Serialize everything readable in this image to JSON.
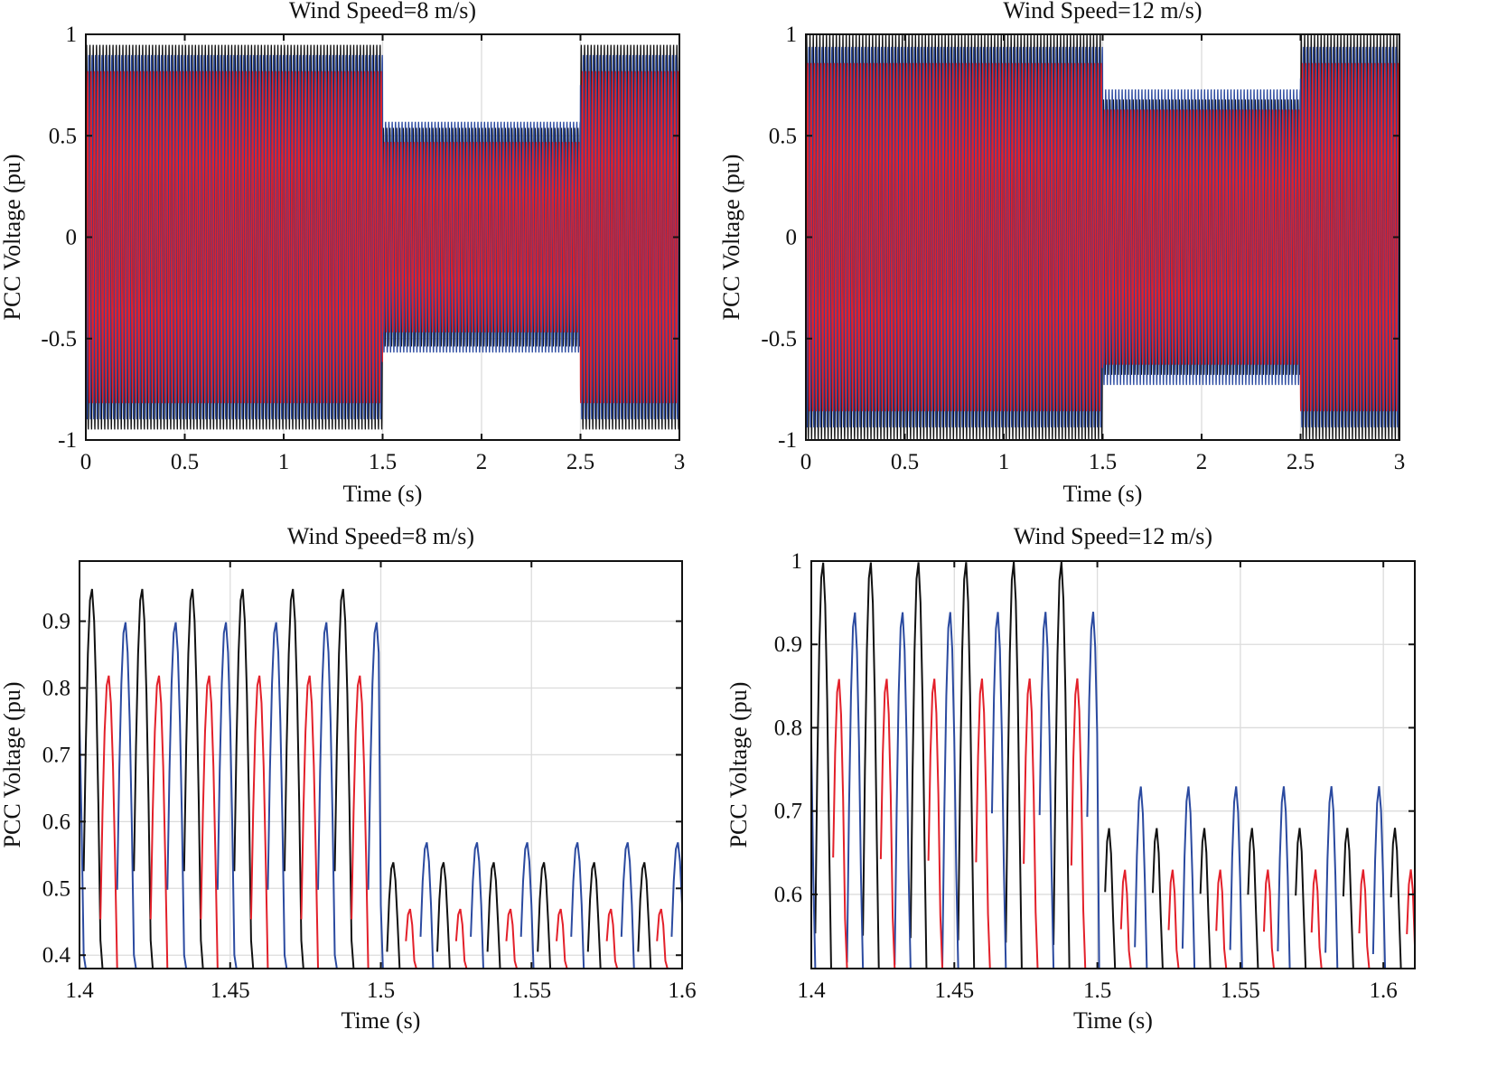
{
  "colors": {
    "phase_a": "#111111",
    "phase_b": "#2b4aa0",
    "phase_c": "#e3202a",
    "grid": "#dcdcdc"
  },
  "chart_data": [
    {
      "type": "line",
      "title": "Wind Speed=8 m/s)",
      "xlabel": "Time (s)",
      "ylabel": "PCC Voltage (pu)",
      "xlim": [
        0,
        3
      ],
      "ylim": [
        -1,
        1
      ],
      "xticks": [
        "0",
        "0.5",
        "1",
        "1.5",
        "2",
        "2.5",
        "3"
      ],
      "yticks": [
        "1",
        "0.5",
        "0",
        "-0.5",
        "-1"
      ],
      "grid": true,
      "frequency_hz": 60,
      "series": [
        {
          "color": "#111111",
          "segments": [
            {
              "t": [
                0,
                1.5
              ],
              "amplitude": 0.95
            },
            {
              "t": [
                1.5,
                2.5
              ],
              "amplitude": 0.54
            },
            {
              "t": [
                2.5,
                3
              ],
              "amplitude": 0.95
            }
          ]
        },
        {
          "color": "#2b4aa0",
          "segments": [
            {
              "t": [
                0,
                1.5
              ],
              "amplitude": 0.9
            },
            {
              "t": [
                1.5,
                2.5
              ],
              "amplitude": 0.57
            },
            {
              "t": [
                2.5,
                3
              ],
              "amplitude": 0.9
            }
          ]
        },
        {
          "color": "#e3202a",
          "segments": [
            {
              "t": [
                0,
                1.5
              ],
              "amplitude": 0.82
            },
            {
              "t": [
                1.5,
                2.5
              ],
              "amplitude": 0.47
            },
            {
              "t": [
                2.5,
                3
              ],
              "amplitude": 0.82
            }
          ]
        }
      ]
    },
    {
      "type": "line",
      "title": "Wind Speed=12 m/s)",
      "xlabel": "Time (s)",
      "ylabel": "PCC Voltage (pu)",
      "xlim": [
        0,
        3
      ],
      "ylim": [
        -1,
        1
      ],
      "xticks": [
        "0",
        "0.5",
        "1",
        "1.5",
        "2",
        "2.5",
        "3"
      ],
      "yticks": [
        "1",
        "0.5",
        "0",
        "-0.5",
        "-1"
      ],
      "grid": true,
      "frequency_hz": 60,
      "series": [
        {
          "color": "#111111",
          "segments": [
            {
              "t": [
                0,
                1.5
              ],
              "amplitude": 1.0
            },
            {
              "t": [
                1.5,
                2.5
              ],
              "amplitude": 0.68
            },
            {
              "t": [
                2.5,
                3
              ],
              "amplitude": 1.0
            }
          ]
        },
        {
          "color": "#2b4aa0",
          "segments": [
            {
              "t": [
                0,
                1.5
              ],
              "amplitude": 0.94
            },
            {
              "t": [
                1.5,
                2.5
              ],
              "amplitude": 0.73
            },
            {
              "t": [
                2.5,
                3
              ],
              "amplitude": 0.94
            }
          ]
        },
        {
          "color": "#e3202a",
          "segments": [
            {
              "t": [
                0,
                1.5
              ],
              "amplitude": 0.86
            },
            {
              "t": [
                1.5,
                2.5
              ],
              "amplitude": 0.63
            },
            {
              "t": [
                2.5,
                3
              ],
              "amplitude": 0.86
            }
          ]
        }
      ]
    },
    {
      "type": "line",
      "title": "Wind Speed=8 m/s)",
      "xlabel": "Time (s)",
      "ylabel": "PCC Voltage (pu)",
      "xlim": [
        1.4,
        1.6
      ],
      "ylim": [
        0.38,
        0.99
      ],
      "xticks": [
        "1.4",
        "1.45",
        "1.5",
        "1.55",
        "1.6"
      ],
      "yticks": [
        "0.9",
        "0.8",
        "0.7",
        "0.6",
        "0.5",
        "0.4"
      ],
      "grid": true,
      "frequency_hz": 60,
      "series": [
        {
          "color": "#111111",
          "segments": [
            {
              "t": [
                1.4,
                1.5
              ],
              "amplitude": 0.95
            },
            {
              "t": [
                1.5,
                1.6
              ],
              "amplitude": 0.54
            }
          ]
        },
        {
          "color": "#2b4aa0",
          "segments": [
            {
              "t": [
                1.4,
                1.5
              ],
              "amplitude": 0.9
            },
            {
              "t": [
                1.5,
                1.6
              ],
              "amplitude": 0.57
            }
          ]
        },
        {
          "color": "#e3202a",
          "segments": [
            {
              "t": [
                1.4,
                1.5
              ],
              "amplitude": 0.82
            },
            {
              "t": [
                1.5,
                1.6
              ],
              "amplitude": 0.47
            }
          ]
        }
      ]
    },
    {
      "type": "line",
      "title": "Wind Speed=12 m/s)",
      "xlabel": "Time (s)",
      "ylabel": "PCC Voltage (pu)",
      "xlim": [
        1.4,
        1.611
      ],
      "ylim": [
        0.511,
        1.0
      ],
      "xticks": [
        "1.4",
        "1.45",
        "1.5",
        "1.55",
        "1.6"
      ],
      "yticks": [
        "1",
        "0.9",
        "0.8",
        "0.7",
        "0.6"
      ],
      "grid": true,
      "frequency_hz": 60,
      "series": [
        {
          "color": "#111111",
          "segments": [
            {
              "t": [
                1.4,
                1.5
              ],
              "amplitude": 1.0
            },
            {
              "t": [
                1.5,
                1.611
              ],
              "amplitude": 0.68
            }
          ]
        },
        {
          "color": "#2b4aa0",
          "segments": [
            {
              "t": [
                1.4,
                1.5
              ],
              "amplitude": 0.94
            },
            {
              "t": [
                1.5,
                1.611
              ],
              "amplitude": 0.73
            }
          ]
        },
        {
          "color": "#e3202a",
          "segments": [
            {
              "t": [
                1.4,
                1.5
              ],
              "amplitude": 0.86
            },
            {
              "t": [
                1.5,
                1.611
              ],
              "amplitude": 0.63
            }
          ]
        }
      ]
    }
  ]
}
